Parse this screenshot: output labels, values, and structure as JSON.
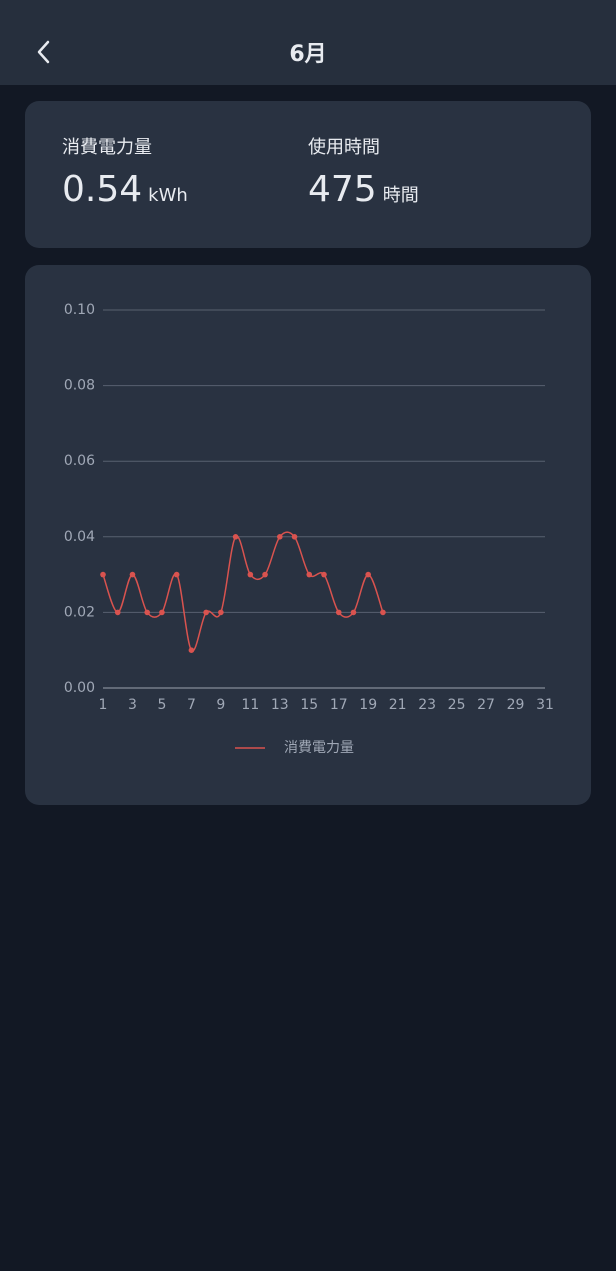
{
  "header": {
    "title": "6月"
  },
  "stats": [
    {
      "label": "消費電力量",
      "value": 0.54,
      "unit": "kWh"
    },
    {
      "label": "使用時間",
      "value": 475,
      "unit": "時間"
    }
  ],
  "chart_data": {
    "type": "line",
    "x": [
      1,
      2,
      3,
      4,
      5,
      6,
      7,
      8,
      9,
      10,
      11,
      12,
      13,
      14,
      15,
      16,
      17,
      18,
      19,
      20
    ],
    "series": [
      {
        "name": "消費電力量",
        "color": "#d9534f",
        "values": [
          0.03,
          0.02,
          0.03,
          0.02,
          0.02,
          0.03,
          0.01,
          0.02,
          0.02,
          0.04,
          0.03,
          0.03,
          0.04,
          0.04,
          0.03,
          0.03,
          0.02,
          0.02,
          0.03,
          0.02
        ]
      }
    ],
    "xlim": [
      1,
      31
    ],
    "xticks": [
      1,
      3,
      5,
      7,
      9,
      11,
      13,
      15,
      17,
      19,
      21,
      23,
      25,
      27,
      29,
      31
    ],
    "ylim": [
      0,
      0.1
    ],
    "yticks": [
      {
        "value": 0,
        "label": "0.00"
      },
      {
        "value": 0.02,
        "label": "0.02"
      },
      {
        "value": 0.04,
        "label": "0.04"
      },
      {
        "value": 0.06,
        "label": "0.06"
      },
      {
        "value": 0.08,
        "label": "0.08"
      },
      {
        "value": 0.1,
        "label": "0.10"
      }
    ],
    "grid": true,
    "legend": "bottom"
  }
}
